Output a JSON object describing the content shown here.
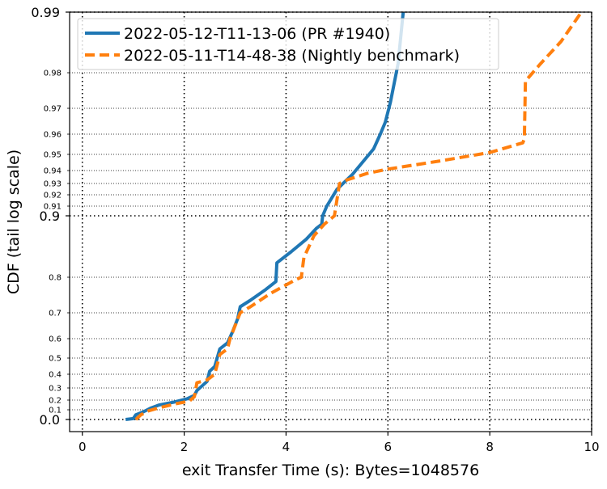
{
  "chart_data": {
    "type": "line",
    "xlabel": "exit Transfer Time (s): Bytes=1048576",
    "ylabel": "CDF (tail log scale)",
    "xlim": [
      -0.25,
      10
    ],
    "x_ticks": [
      0,
      2,
      4,
      6,
      8,
      10
    ],
    "x_tick_labels": [
      "0",
      "2",
      "4",
      "6",
      "8",
      "10"
    ],
    "y_scale": "tail-log (logit-like)",
    "y_major_ticks": [
      0.0,
      0.9,
      0.99
    ],
    "y_major_labels": [
      "0.0",
      "0.9",
      "0.99"
    ],
    "y_minor_ticks": [
      0.1,
      0.2,
      0.3,
      0.4,
      0.5,
      0.6,
      0.7,
      0.8,
      0.91,
      0.92,
      0.93,
      0.94,
      0.95,
      0.96,
      0.97,
      0.98
    ],
    "y_minor_labels": [
      "0.1",
      "0.2",
      "0.3",
      "0.4",
      "0.5",
      "0.6",
      "0.7",
      "0.8",
      "0.91",
      "0.92",
      "0.93",
      "0.94",
      "0.95",
      "0.96",
      "0.97",
      "0.98"
    ],
    "grid": "dotted",
    "legend_position": "top-left",
    "series": [
      {
        "name": "2022-05-12-T11-13-06 (PR #1940)",
        "color": "#1f77b4",
        "style": "solid",
        "points": [
          [
            0.85,
            0.0
          ],
          [
            1.0,
            0.01
          ],
          [
            1.05,
            0.05
          ],
          [
            1.2,
            0.08
          ],
          [
            1.35,
            0.12
          ],
          [
            1.5,
            0.15
          ],
          [
            1.8,
            0.18
          ],
          [
            2.05,
            0.21
          ],
          [
            2.2,
            0.24
          ],
          [
            2.25,
            0.28
          ],
          [
            2.45,
            0.35
          ],
          [
            2.5,
            0.42
          ],
          [
            2.6,
            0.45
          ],
          [
            2.7,
            0.55
          ],
          [
            2.85,
            0.58
          ],
          [
            2.95,
            0.63
          ],
          [
            3.05,
            0.68
          ],
          [
            3.1,
            0.72
          ],
          [
            3.3,
            0.74
          ],
          [
            3.6,
            0.77
          ],
          [
            3.8,
            0.79
          ],
          [
            3.82,
            0.83
          ],
          [
            4.1,
            0.85
          ],
          [
            4.4,
            0.87
          ],
          [
            4.6,
            0.885
          ],
          [
            4.7,
            0.89
          ],
          [
            4.72,
            0.9
          ],
          [
            4.8,
            0.91
          ],
          [
            5.0,
            0.925
          ],
          [
            5.3,
            0.937
          ],
          [
            5.72,
            0.953
          ],
          [
            5.85,
            0.96
          ],
          [
            5.95,
            0.965
          ],
          [
            6.05,
            0.972
          ],
          [
            6.2,
            0.982
          ],
          [
            6.3,
            0.99
          ]
        ]
      },
      {
        "name": "2022-05-11-T14-48-38 (Nightly benchmark)",
        "color": "#ff7f0e",
        "style": "dashed",
        "points": [
          [
            1.05,
            0.0
          ],
          [
            1.15,
            0.05
          ],
          [
            1.3,
            0.09
          ],
          [
            1.5,
            0.12
          ],
          [
            1.8,
            0.16
          ],
          [
            2.1,
            0.19
          ],
          [
            2.2,
            0.23
          ],
          [
            2.25,
            0.34
          ],
          [
            2.45,
            0.36
          ],
          [
            2.6,
            0.4
          ],
          [
            2.7,
            0.52
          ],
          [
            2.85,
            0.55
          ],
          [
            2.9,
            0.6
          ],
          [
            3.1,
            0.7
          ],
          [
            3.3,
            0.72
          ],
          [
            3.7,
            0.76
          ],
          [
            4.2,
            0.795
          ],
          [
            4.3,
            0.8
          ],
          [
            4.35,
            0.84
          ],
          [
            4.55,
            0.875
          ],
          [
            4.75,
            0.89
          ],
          [
            4.95,
            0.9
          ],
          [
            5.05,
            0.93
          ],
          [
            5.2,
            0.933
          ],
          [
            5.6,
            0.938
          ],
          [
            6.0,
            0.941
          ],
          [
            7.0,
            0.946
          ],
          [
            8.0,
            0.951
          ],
          [
            8.65,
            0.956
          ],
          [
            8.68,
            0.958
          ],
          [
            8.7,
            0.978
          ],
          [
            9.0,
            0.982
          ],
          [
            9.4,
            0.986
          ],
          [
            9.8,
            0.99
          ]
        ]
      }
    ]
  }
}
